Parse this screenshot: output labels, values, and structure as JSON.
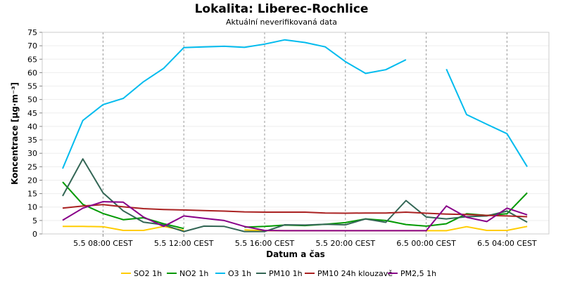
{
  "chart_data": {
    "type": "line",
    "title": "Lokalita: Liberec-Rochlice",
    "subtitle": "Aktuální neverifikovaná data",
    "xlabel": "Datum a čas",
    "ylabel": "Koncentrace [µg·m⁻³]",
    "ylim": [
      0,
      75
    ],
    "y_ticks": [
      "0",
      "5",
      "10",
      "15",
      "20",
      "25",
      "30",
      "35",
      "40",
      "45",
      "50",
      "55",
      "60",
      "65",
      "70",
      "75"
    ],
    "x_ticks": [
      {
        "label": "5.5 08:00 CEST",
        "x": 2
      },
      {
        "label": "5.5 12:00 CEST",
        "x": 6
      },
      {
        "label": "5.5 16:00 CEST",
        "x": 10
      },
      {
        "label": "5.5 20:00 CEST",
        "x": 14
      },
      {
        "label": "6.5 00:00 CEST",
        "x": 18
      },
      {
        "label": "6.5 04:00 CEST",
        "x": 22
      }
    ],
    "grid": true,
    "legend_position": "bottom",
    "series": [
      {
        "name": "SO2 1h",
        "color": "#ffcc00",
        "values": [
          2.8,
          2.8,
          2.7,
          1.3,
          1.3,
          2.8,
          1.3,
          null,
          null,
          1.5,
          1.2,
          1.2,
          1.2,
          1.2,
          1.2,
          1.2,
          1.2,
          1.2,
          1.2,
          1.2,
          2.7,
          1.3,
          1.3,
          2.8
        ]
      },
      {
        "name": "NO2 1h",
        "color": "#009900",
        "values": [
          19.3,
          11.0,
          7.6,
          5.3,
          6.0,
          3.8,
          2.0,
          null,
          null,
          2.5,
          2.8,
          3.3,
          3.1,
          3.6,
          4.2,
          5.6,
          5.0,
          3.5,
          2.9,
          3.8,
          7.5,
          6.9,
          7.5,
          15.3
        ]
      },
      {
        "name": "O3 1h",
        "color": "#00bbee",
        "values": [
          24.3,
          42.2,
          48.1,
          50.4,
          56.6,
          61.6,
          69.3,
          69.6,
          69.8,
          69.4,
          70.6,
          72.2,
          71.2,
          69.6,
          64.1,
          59.7,
          61.1,
          64.8,
          null,
          61.3,
          44.4,
          40.8,
          37.3,
          25.0
        ]
      },
      {
        "name": "PM10 1h",
        "color": "#336655",
        "values": [
          14.1,
          27.9,
          15.3,
          8.6,
          4.4,
          3.4,
          0.9,
          2.9,
          2.8,
          0.9,
          0.9,
          3.4,
          3.3,
          3.6,
          3.4,
          5.6,
          4.3,
          12.4,
          6.3,
          5.6,
          6.4,
          6.7,
          8.5,
          4.4
        ]
      },
      {
        "name": "PM10 24h klouzavě",
        "color": "#aa2222",
        "values": [
          9.6,
          10.4,
          10.9,
          10.1,
          9.4,
          9.1,
          8.9,
          8.7,
          8.5,
          8.2,
          8.1,
          8.1,
          8.1,
          7.8,
          7.7,
          7.8,
          7.8,
          8.1,
          7.7,
          7.4,
          7.2,
          6.9,
          6.7,
          6.4
        ]
      },
      {
        "name": "PM2,5 1h",
        "color": "#880088",
        "values": [
          5.1,
          9.6,
          12.0,
          11.8,
          6.3,
          2.8,
          6.7,
          5.8,
          5.0,
          2.8,
          1.3,
          1.2,
          1.2,
          1.2,
          1.2,
          1.2,
          1.2,
          1.2,
          1.2,
          10.4,
          6.2,
          4.6,
          9.6,
          7.1
        ]
      }
    ]
  }
}
